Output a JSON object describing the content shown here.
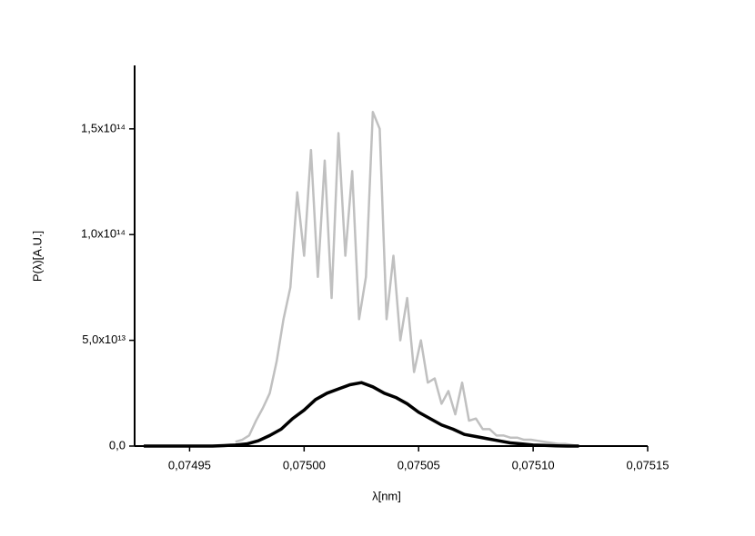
{
  "chart_data": {
    "type": "line",
    "x_label": "λ[nm]",
    "y_label": "P(λ)[A.U.]",
    "xlim": [
      0.074926,
      0.07515
    ],
    "ylim": [
      0,
      180000000000000.0
    ],
    "xticks": [
      {
        "value": 0.07495,
        "label": "0,07495"
      },
      {
        "value": 0.075,
        "label": "0,07500"
      },
      {
        "value": 0.07505,
        "label": "0,07505"
      },
      {
        "value": 0.0751,
        "label": "0,07510"
      },
      {
        "value": 0.07515,
        "label": "0,07515"
      }
    ],
    "yticks": [
      {
        "value": 0,
        "label": "0,0"
      },
      {
        "value": 50000000000000.0,
        "label": "5,0x10¹³"
      },
      {
        "value": 100000000000000.0,
        "label": "1,0x10¹⁴"
      },
      {
        "value": 150000000000000.0,
        "label": "1,5x10¹⁴"
      }
    ],
    "series": [
      {
        "color": "#c0c0c0",
        "width": 2.5,
        "x": [
          0.07497,
          0.074973,
          0.074976,
          0.074979,
          0.074982,
          0.074985,
          0.074988,
          0.074991,
          0.074994,
          0.074997,
          0.075,
          0.075003,
          0.075006,
          0.075009,
          0.075012,
          0.075015,
          0.075018,
          0.075021,
          0.075024,
          0.075027,
          0.07503,
          0.075033,
          0.075036,
          0.075039,
          0.075042,
          0.075045,
          0.075048,
          0.075051,
          0.075054,
          0.075057,
          0.07506,
          0.075063,
          0.075066,
          0.075069,
          0.075072,
          0.075075,
          0.075078,
          0.075081,
          0.075084,
          0.075087,
          0.07509,
          0.075093,
          0.075096,
          0.075099,
          0.075102,
          0.075105,
          0.075108,
          0.075111,
          0.075114,
          0.075117,
          0.07512
        ],
        "values": [
          2000000000000.0,
          3000000000000.0,
          5000000000000.0,
          12000000000000.0,
          18000000000000.0,
          25000000000000.0,
          40000000000000.0,
          60000000000000.0,
          75000000000000.0,
          120000000000000.0,
          90000000000000.0,
          140000000000000.0,
          80000000000000.0,
          135000000000000.0,
          70000000000000.0,
          148000000000000.0,
          90000000000000.0,
          130000000000000.0,
          60000000000000.0,
          80000000000000.0,
          158000000000000.0,
          150000000000000.0,
          60000000000000.0,
          90000000000000.0,
          50000000000000.0,
          70000000000000.0,
          35000000000000.0,
          50000000000000.0,
          30000000000000.0,
          32000000000000.0,
          20000000000000.0,
          26000000000000.0,
          15000000000000.0,
          30000000000000.0,
          12000000000000.0,
          13000000000000.0,
          8000000000000.0,
          8000000000000.0,
          5000000000000.0,
          5000000000000.0,
          4000000000000.0,
          4000000000000.0,
          3000000000000.0,
          3000000000000.0,
          2500000000000.0,
          2000000000000.0,
          1500000000000.0,
          1000000000000.0,
          1000000000000.0,
          500000000000.0,
          0
        ]
      },
      {
        "color": "#000000",
        "width": 3.5,
        "x": [
          0.07493,
          0.074935,
          0.07494,
          0.074945,
          0.07495,
          0.074955,
          0.07496,
          0.074965,
          0.07497,
          0.074975,
          0.07498,
          0.074985,
          0.07499,
          0.074995,
          0.075,
          0.075005,
          0.07501,
          0.075015,
          0.07502,
          0.075025,
          0.07503,
          0.075035,
          0.07504,
          0.075045,
          0.07505,
          0.075055,
          0.07506,
          0.075065,
          0.07507,
          0.075075,
          0.07508,
          0.075085,
          0.07509,
          0.075095,
          0.0751,
          0.075105,
          0.07511,
          0.075115,
          0.07512
        ],
        "values": [
          0,
          0,
          0,
          0,
          0,
          0,
          0,
          200000000000.0,
          500000000000.0,
          1000000000000.0,
          2500000000000.0,
          5000000000000.0,
          8000000000000.0,
          13000000000000.0,
          17000000000000.0,
          22000000000000.0,
          25000000000000.0,
          27000000000000.0,
          29000000000000.0,
          30000000000000.0,
          28000000000000.0,
          25000000000000.0,
          23000000000000.0,
          20000000000000.0,
          16000000000000.0,
          13000000000000.0,
          10000000000000.0,
          8000000000000.0,
          5500000000000.0,
          4500000000000.0,
          3500000000000.0,
          2500000000000.0,
          1500000000000.0,
          1000000000000.0,
          500000000000.0,
          300000000000.0,
          100000000000.0,
          0,
          0
        ]
      }
    ]
  }
}
